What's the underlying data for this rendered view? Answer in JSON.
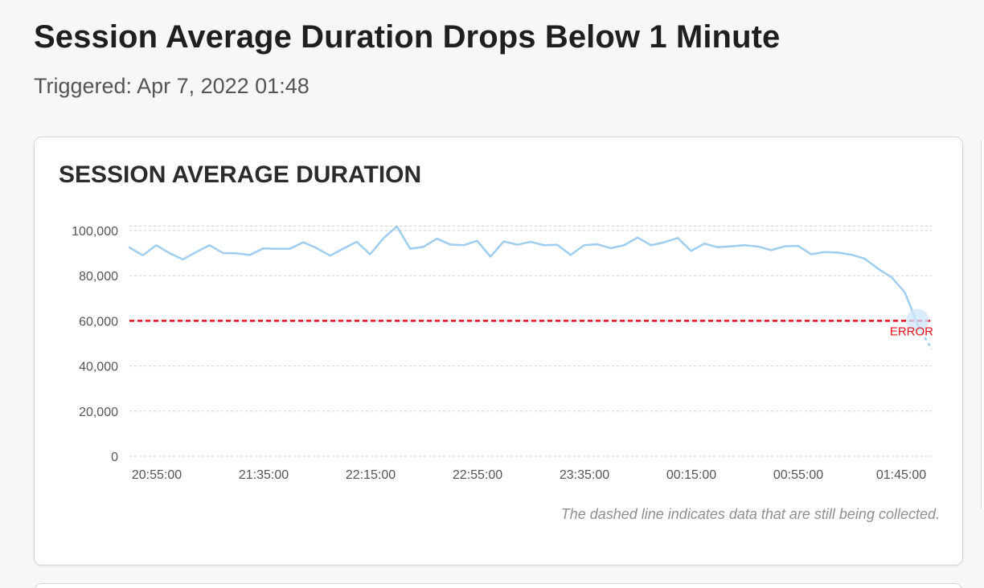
{
  "header": {
    "title": "Session Average Duration Drops Below 1 Minute",
    "triggered": "Triggered: Apr 7, 2022 01:48"
  },
  "card": {
    "title": "SESSION AVERAGE DURATION",
    "footnote": "The dashed line indicates data that are still being collected."
  },
  "colors": {
    "series": "#9fcdf0",
    "threshold": "#e3101c",
    "grid": "#cfcfcf",
    "marker": "#cfe6f8"
  },
  "chart_data": {
    "type": "line",
    "y_ticks": [
      "0",
      "20,000",
      "40,000",
      "60,000",
      "80,000",
      "100,000"
    ],
    "y_tick_values": [
      0,
      20000,
      40000,
      60000,
      80000,
      100000
    ],
    "x_ticks": [
      "20:55:00",
      "21:35:00",
      "22:15:00",
      "22:55:00",
      "23:35:00",
      "00:15:00",
      "00:55:00",
      "01:45:00"
    ],
    "ylim": [
      0,
      102000
    ],
    "threshold": {
      "label": "ERROR",
      "value": 60000
    },
    "grid": true,
    "series": [
      {
        "values": [
          92500,
          89000,
          93500,
          90000,
          87200,
          90500,
          93500,
          90000,
          89900,
          89200,
          92100,
          91900,
          91900,
          94800,
          92200,
          88900,
          92000,
          95000,
          89500,
          96600,
          101800,
          91900,
          92800,
          96400,
          93800,
          93500,
          95500,
          88400,
          95200,
          93700,
          95000,
          93500,
          93700,
          89200,
          93500,
          93900,
          92200,
          93500,
          96900,
          93500,
          94800,
          96700,
          91000,
          94200,
          92600,
          93000,
          93500,
          92900,
          91300,
          93000,
          93200,
          89500,
          90500,
          90200,
          89300,
          87500,
          83000,
          79300,
          72500,
          57500,
          47500
        ],
        "collecting_from_index": 59
      }
    ]
  }
}
